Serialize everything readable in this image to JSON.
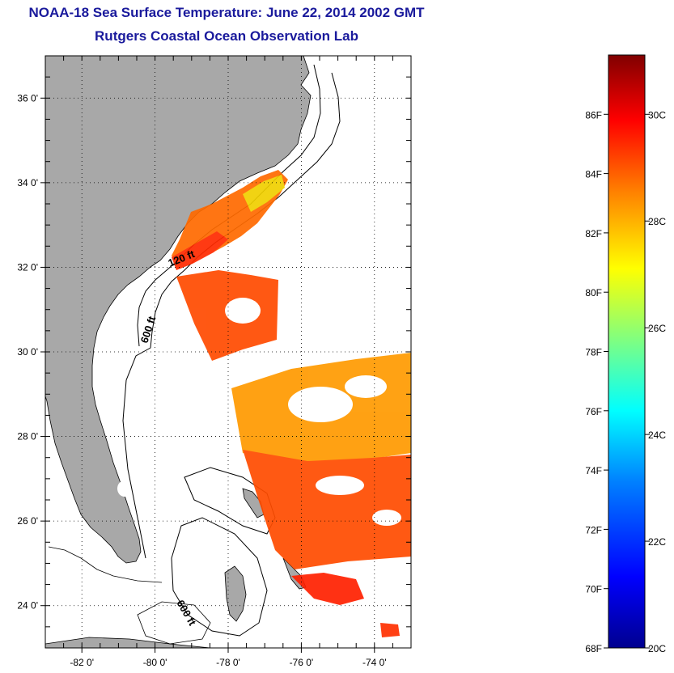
{
  "header": {
    "title": "NOAA-18 Sea Surface Temperature:  June 22, 2014 2002 GMT",
    "subtitle": "Rutgers Coastal Ocean Observation Lab"
  },
  "map": {
    "lon_range": [
      -83,
      -73
    ],
    "lat_range": [
      23,
      37
    ],
    "lon_ticks": [
      -82,
      -80,
      -78,
      -76,
      -74
    ],
    "lon_tick_labels": [
      "-82 0'",
      "-80 0'",
      "-78 0'",
      "-76 0'",
      "-74 0'"
    ],
    "lat_ticks": [
      24,
      26,
      28,
      30,
      32,
      34,
      36
    ],
    "lat_tick_labels": [
      "24 0'",
      "26 0'",
      "28 0'",
      "30 0'",
      "32 0'",
      "34 0'",
      "36 0'"
    ],
    "contour_labels": [
      "120 ft",
      "600 ft",
      "600 ft"
    ],
    "land_color": "#a8a8a8",
    "grid": "dotted"
  },
  "colorbar": {
    "f_labels": [
      "86F",
      "84F",
      "82F",
      "80F",
      "78F",
      "76F",
      "74F",
      "72F",
      "70F",
      "68F"
    ],
    "f_values": [
      86,
      84,
      82,
      80,
      78,
      76,
      74,
      72,
      70,
      68
    ],
    "c_labels": [
      "30C",
      "28C",
      "26C",
      "24C",
      "22C",
      "20C"
    ],
    "c_values": [
      30,
      28,
      26,
      24,
      22,
      20
    ],
    "range_f": [
      68,
      88
    ],
    "colors": [
      "#00008f",
      "#0000ff",
      "#0080ff",
      "#00ffff",
      "#80ff80",
      "#ffff00",
      "#ff8000",
      "#ff0000",
      "#800000"
    ]
  }
}
